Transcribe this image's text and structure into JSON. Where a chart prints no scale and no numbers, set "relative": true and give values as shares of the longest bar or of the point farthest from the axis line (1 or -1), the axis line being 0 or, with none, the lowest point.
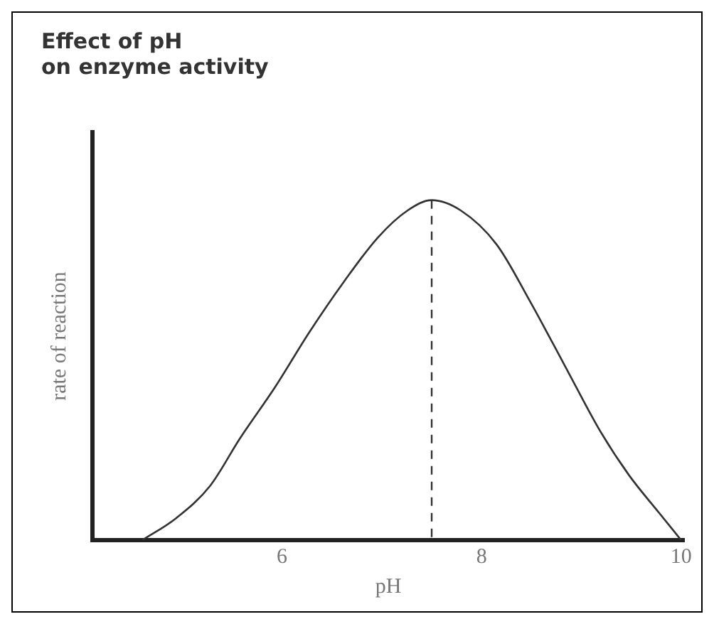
{
  "chart_data": {
    "type": "line",
    "title": "Effect of pH\non enzyme activity",
    "xlabel": "pH",
    "ylabel": "rate of reaction",
    "relative": true,
    "xlim": [
      4.1,
      10.03
    ],
    "xticks": [
      6,
      8,
      10
    ],
    "grid": false,
    "legend": false,
    "marker": "none",
    "line_style": "solid",
    "series": [
      {
        "color": "#333333",
        "x": [
          4.6,
          4.94,
          5.28,
          5.58,
          5.93,
          6.27,
          6.62,
          6.96,
          7.26,
          7.5,
          7.79,
          8.15,
          8.49,
          8.84,
          9.19,
          9.48,
          9.78,
          10.0
        ],
        "values": [
          0,
          0.065,
          0.16,
          0.3,
          0.45,
          0.61,
          0.76,
          0.89,
          0.97,
          1,
          0.97,
          0.87,
          0.7,
          0.51,
          0.32,
          0.19,
          0.08,
          0
        ]
      }
    ],
    "ref_lines": [
      {
        "axis": "x",
        "value": 7.5,
        "line_style": "dashed",
        "color": "#333333"
      }
    ]
  }
}
